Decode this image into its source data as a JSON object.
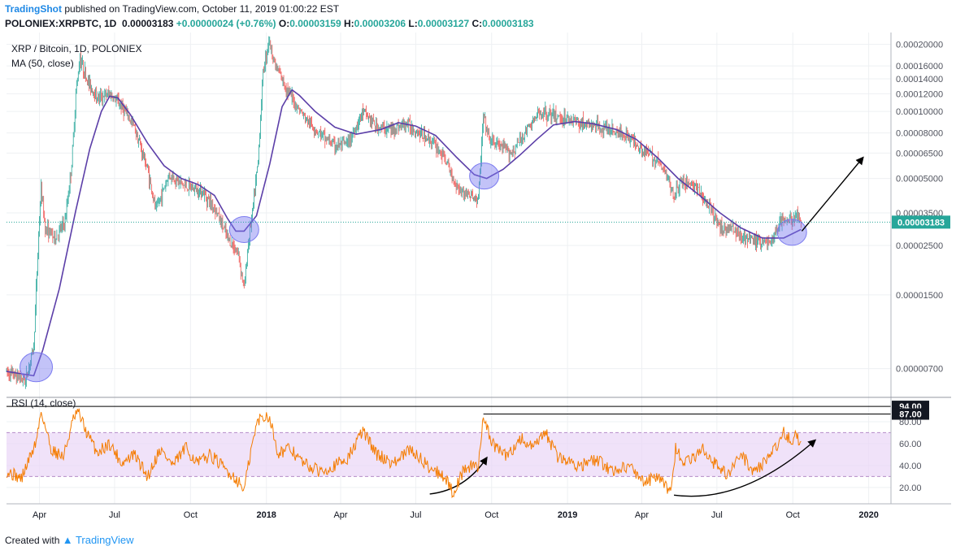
{
  "header": {
    "author": "TradingShot",
    "published_text": "published on TradingView.com, October 11, 2019 01:00:22 EST",
    "symbol": "POLONIEX:XRPBTC, 1D",
    "price": "0.00003183",
    "change": "+0.00000024 (+0.76%)",
    "o_label": "O:",
    "o_value": "0.00003159",
    "h_label": "H:",
    "h_value": "0.00003206",
    "l_label": "L:",
    "l_value": "0.00003127",
    "c_label": "C:",
    "c_value": "0.00003183"
  },
  "footer": {
    "created_with": "Created with",
    "brand": "TradingView"
  },
  "colors": {
    "up": "#26a69a",
    "down": "#ef5350",
    "ma": "#5c3fa8",
    "rsi": "#f57c00",
    "rsi_band": "#e9d5f7",
    "highlight": "#7b7bf0",
    "last_price": "#26a69a"
  },
  "chart_data": [
    {
      "type": "candlestick",
      "title": "XRP / Bitcoin, 1D, POLONIEX",
      "indicator_label": "MA (50, close)",
      "y_scale": "log",
      "ylim": [
        5.8e-06,
        0.000215
      ],
      "y_ticks": [
        "0.00020000",
        "0.00016000",
        "0.00014000",
        "0.00012000",
        "0.00010000",
        "0.00008000",
        "0.00006500",
        "0.00005000",
        "0.00003500",
        "0.00002500",
        "0.00001500",
        "0.00000700"
      ],
      "y_tick_values": [
        0.0002,
        0.00016,
        0.00014,
        0.00012,
        0.0001,
        8e-05,
        6.5e-05,
        5e-05,
        3.5e-05,
        2.5e-05,
        1.5e-05,
        7e-06
      ],
      "x_ticks": [
        "Apr",
        "Jul",
        "Oct",
        "2018",
        "Apr",
        "Jul",
        "Oct",
        "2019",
        "Apr",
        "Jul",
        "Oct",
        "2020"
      ],
      "last_price_label": "0.00003183",
      "price_path": [
        [
          "2017-02-20",
          6.8e-06
        ],
        [
          "2017-03-15",
          6.2e-06
        ],
        [
          "2017-03-25",
          8.8e-06
        ],
        [
          "2017-03-31",
          2.8e-05
        ],
        [
          "2017-04-03",
          4.5e-05
        ],
        [
          "2017-04-08",
          3e-05
        ],
        [
          "2017-04-20",
          2.7e-05
        ],
        [
          "2017-05-02",
          3.2e-05
        ],
        [
          "2017-05-10",
          5.8e-05
        ],
        [
          "2017-05-15",
          0.00012
        ],
        [
          "2017-05-20",
          0.000175
        ],
        [
          "2017-05-28",
          0.00014
        ],
        [
          "2017-06-10",
          0.000115
        ],
        [
          "2017-06-25",
          0.00012
        ],
        [
          "2017-07-10",
          0.000105
        ],
        [
          "2017-07-25",
          8.5e-05
        ],
        [
          "2017-08-10",
          5.5e-05
        ],
        [
          "2017-08-20",
          3.6e-05
        ],
        [
          "2017-09-05",
          5.2e-05
        ],
        [
          "2017-09-25",
          4.6e-05
        ],
        [
          "2017-10-15",
          4.4e-05
        ],
        [
          "2017-11-01",
          3.6e-05
        ],
        [
          "2017-11-15",
          2.7e-05
        ],
        [
          "2017-11-28",
          2.3e-05
        ],
        [
          "2017-12-05",
          1.6e-05
        ],
        [
          "2017-12-10",
          2.6e-05
        ],
        [
          "2017-12-15",
          3.5e-05
        ],
        [
          "2017-12-22",
          6e-05
        ],
        [
          "2017-12-28",
          0.00015
        ],
        [
          "2018-01-04",
          0.00021
        ],
        [
          "2018-01-12",
          0.00016
        ],
        [
          "2018-01-25",
          0.000128
        ],
        [
          "2018-02-05",
          0.000108
        ],
        [
          "2018-02-20",
          9e-05
        ],
        [
          "2018-03-10",
          7.8e-05
        ],
        [
          "2018-03-25",
          7e-05
        ],
        [
          "2018-04-10",
          7.2e-05
        ],
        [
          "2018-04-28",
          0.0001
        ],
        [
          "2018-05-15",
          8.5e-05
        ],
        [
          "2018-06-01",
          8.3e-05
        ],
        [
          "2018-06-20",
          8.8e-05
        ],
        [
          "2018-07-05",
          8e-05
        ],
        [
          "2018-07-20",
          7.4e-05
        ],
        [
          "2018-08-05",
          6.2e-05
        ],
        [
          "2018-08-15",
          5e-05
        ],
        [
          "2018-08-25",
          4.4e-05
        ],
        [
          "2018-09-05",
          4.2e-05
        ],
        [
          "2018-09-15",
          4e-05
        ],
        [
          "2018-09-21",
          9.5e-05
        ],
        [
          "2018-09-28",
          7.5e-05
        ],
        [
          "2018-10-10",
          7e-05
        ],
        [
          "2018-10-25",
          6.5e-05
        ],
        [
          "2018-11-10",
          8e-05
        ],
        [
          "2018-11-20",
          9e-05
        ],
        [
          "2018-12-01",
          0.0001
        ],
        [
          "2018-12-15",
          9.5e-05
        ],
        [
          "2019-01-05",
          9.2e-05
        ],
        [
          "2019-01-25",
          8.7e-05
        ],
        [
          "2019-02-10",
          8.5e-05
        ],
        [
          "2019-02-25",
          8.2e-05
        ],
        [
          "2019-03-15",
          7.8e-05
        ],
        [
          "2019-04-01",
          6.8e-05
        ],
        [
          "2019-04-20",
          6e-05
        ],
        [
          "2019-05-01",
          5.2e-05
        ],
        [
          "2019-05-10",
          4.2e-05
        ],
        [
          "2019-05-20",
          4.9e-05
        ],
        [
          "2019-06-05",
          4.6e-05
        ],
        [
          "2019-06-20",
          3.8e-05
        ],
        [
          "2019-07-05",
          3e-05
        ],
        [
          "2019-07-20",
          3e-05
        ],
        [
          "2019-08-05",
          2.7e-05
        ],
        [
          "2019-08-20",
          2.6e-05
        ],
        [
          "2019-09-05",
          2.6e-05
        ],
        [
          "2019-09-18",
          3.3e-05
        ],
        [
          "2019-09-25",
          3.2e-05
        ],
        [
          "2019-10-05",
          3.4e-05
        ],
        [
          "2019-10-11",
          3.18e-05
        ]
      ],
      "ma_path": [
        [
          "2017-02-20",
          6.8e-06
        ],
        [
          "2017-03-25",
          6.5e-06
        ],
        [
          "2017-04-05",
          8.5e-06
        ],
        [
          "2017-04-25",
          1.6e-05
        ],
        [
          "2017-05-15",
          3.6e-05
        ],
        [
          "2017-06-01",
          6.8e-05
        ],
        [
          "2017-06-15",
          0.0001
        ],
        [
          "2017-06-25",
          0.000117
        ],
        [
          "2017-07-05",
          0.000115
        ],
        [
          "2017-07-20",
          9.7e-05
        ],
        [
          "2017-08-10",
          7.2e-05
        ],
        [
          "2017-08-30",
          5.7e-05
        ],
        [
          "2017-09-20",
          5e-05
        ],
        [
          "2017-10-10",
          4.7e-05
        ],
        [
          "2017-10-30",
          4.2e-05
        ],
        [
          "2017-11-15",
          3.3e-05
        ],
        [
          "2017-11-25",
          2.9e-05
        ],
        [
          "2017-12-05",
          2.9e-05
        ],
        [
          "2017-12-20",
          3.4e-05
        ],
        [
          "2018-01-05",
          5.8e-05
        ],
        [
          "2018-01-20",
          0.000105
        ],
        [
          "2018-02-01",
          0.000125
        ],
        [
          "2018-02-10",
          0.000118
        ],
        [
          "2018-03-01",
          0.0001
        ],
        [
          "2018-03-25",
          8.5e-05
        ],
        [
          "2018-04-20",
          7.9e-05
        ],
        [
          "2018-05-20",
          8.3e-05
        ],
        [
          "2018-06-10",
          8.9e-05
        ],
        [
          "2018-07-01",
          8.6e-05
        ],
        [
          "2018-07-25",
          7.8e-05
        ],
        [
          "2018-08-20",
          6.2e-05
        ],
        [
          "2018-09-10",
          5.2e-05
        ],
        [
          "2018-09-25",
          5e-05
        ],
        [
          "2018-10-15",
          5.5e-05
        ],
        [
          "2018-11-05",
          6.4e-05
        ],
        [
          "2018-11-25",
          7.5e-05
        ],
        [
          "2018-12-15",
          8.7e-05
        ],
        [
          "2019-01-10",
          9e-05
        ],
        [
          "2019-02-01",
          8.8e-05
        ],
        [
          "2019-03-01",
          8.3e-05
        ],
        [
          "2019-03-25",
          7.5e-05
        ],
        [
          "2019-04-20",
          6.2e-05
        ],
        [
          "2019-05-15",
          5e-05
        ],
        [
          "2019-06-10",
          4.2e-05
        ],
        [
          "2019-07-05",
          3.5e-05
        ],
        [
          "2019-07-30",
          3e-05
        ],
        [
          "2019-08-25",
          2.7e-05
        ],
        [
          "2019-09-20",
          2.7e-05
        ],
        [
          "2019-10-11",
          2.95e-05
        ]
      ],
      "circles": [
        "2017-03-28",
        "2017-12-05",
        "2018-09-22",
        "2019-09-30"
      ],
      "arrow": {
        "from": [
          "2019-10-12",
          2.9e-05
        ],
        "to": [
          "2019-12-25",
          6.2e-05
        ]
      }
    },
    {
      "type": "line",
      "title": "RSI (14, close)",
      "ylim": [
        8,
        100
      ],
      "y_ticks": [
        "80.00",
        "60.00",
        "40.00",
        "20.00"
      ],
      "y_tick_values": [
        80,
        60,
        40,
        20
      ],
      "band": [
        30,
        70
      ],
      "levels": [
        {
          "label": "94.00",
          "value": 94
        },
        {
          "label": "87.00",
          "value": 87
        }
      ],
      "rsi_path": [
        [
          "2017-02-20",
          35
        ],
        [
          "2017-03-10",
          28
        ],
        [
          "2017-03-28",
          62
        ],
        [
          "2017-04-03",
          90
        ],
        [
          "2017-04-15",
          55
        ],
        [
          "2017-04-30",
          48
        ],
        [
          "2017-05-12",
          82
        ],
        [
          "2017-05-18",
          89
        ],
        [
          "2017-05-28",
          70
        ],
        [
          "2017-06-10",
          52
        ],
        [
          "2017-06-25",
          60
        ],
        [
          "2017-07-10",
          42
        ],
        [
          "2017-07-25",
          50
        ],
        [
          "2017-08-10",
          30
        ],
        [
          "2017-08-25",
          55
        ],
        [
          "2017-09-10",
          40
        ],
        [
          "2017-09-25",
          56
        ],
        [
          "2017-10-10",
          42
        ],
        [
          "2017-10-25",
          50
        ],
        [
          "2017-11-10",
          38
        ],
        [
          "2017-11-25",
          28
        ],
        [
          "2017-12-05",
          18
        ],
        [
          "2017-12-15",
          60
        ],
        [
          "2017-12-22",
          82
        ],
        [
          "2018-01-04",
          86
        ],
        [
          "2018-01-15",
          52
        ],
        [
          "2018-01-30",
          55
        ],
        [
          "2018-02-15",
          42
        ],
        [
          "2018-03-05",
          35
        ],
        [
          "2018-03-25",
          40
        ],
        [
          "2018-04-10",
          47
        ],
        [
          "2018-04-28",
          72
        ],
        [
          "2018-05-15",
          50
        ],
        [
          "2018-06-05",
          42
        ],
        [
          "2018-06-25",
          55
        ],
        [
          "2018-07-15",
          40
        ],
        [
          "2018-08-05",
          30
        ],
        [
          "2018-08-15",
          15
        ],
        [
          "2018-08-30",
          38
        ],
        [
          "2018-09-15",
          40
        ],
        [
          "2018-09-21",
          87
        ],
        [
          "2018-10-01",
          60
        ],
        [
          "2018-10-20",
          48
        ],
        [
          "2018-11-05",
          65
        ],
        [
          "2018-11-20",
          55
        ],
        [
          "2018-12-05",
          70
        ],
        [
          "2018-12-20",
          48
        ],
        [
          "2019-01-15",
          40
        ],
        [
          "2019-02-05",
          45
        ],
        [
          "2019-02-25",
          35
        ],
        [
          "2019-03-15",
          40
        ],
        [
          "2019-04-05",
          25
        ],
        [
          "2019-04-20",
          30
        ],
        [
          "2019-05-05",
          15
        ],
        [
          "2019-05-12",
          55
        ],
        [
          "2019-05-25",
          42
        ],
        [
          "2019-06-15",
          55
        ],
        [
          "2019-06-30",
          40
        ],
        [
          "2019-07-15",
          32
        ],
        [
          "2019-07-30",
          50
        ],
        [
          "2019-08-15",
          35
        ],
        [
          "2019-08-30",
          45
        ],
        [
          "2019-09-10",
          55
        ],
        [
          "2019-09-20",
          72
        ],
        [
          "2019-09-30",
          60
        ],
        [
          "2019-10-05",
          70
        ],
        [
          "2019-10-11",
          58
        ]
      ],
      "arrows": [
        {
          "from": [
            "2018-07-18",
            14
          ],
          "mid": [
            "2018-08-30",
            25
          ],
          "to": [
            "2018-09-25",
            47
          ]
        },
        {
          "from": [
            "2019-05-10",
            13
          ],
          "mid": [
            "2019-08-01",
            12
          ],
          "to": [
            "2019-10-28",
            63
          ]
        }
      ]
    }
  ]
}
